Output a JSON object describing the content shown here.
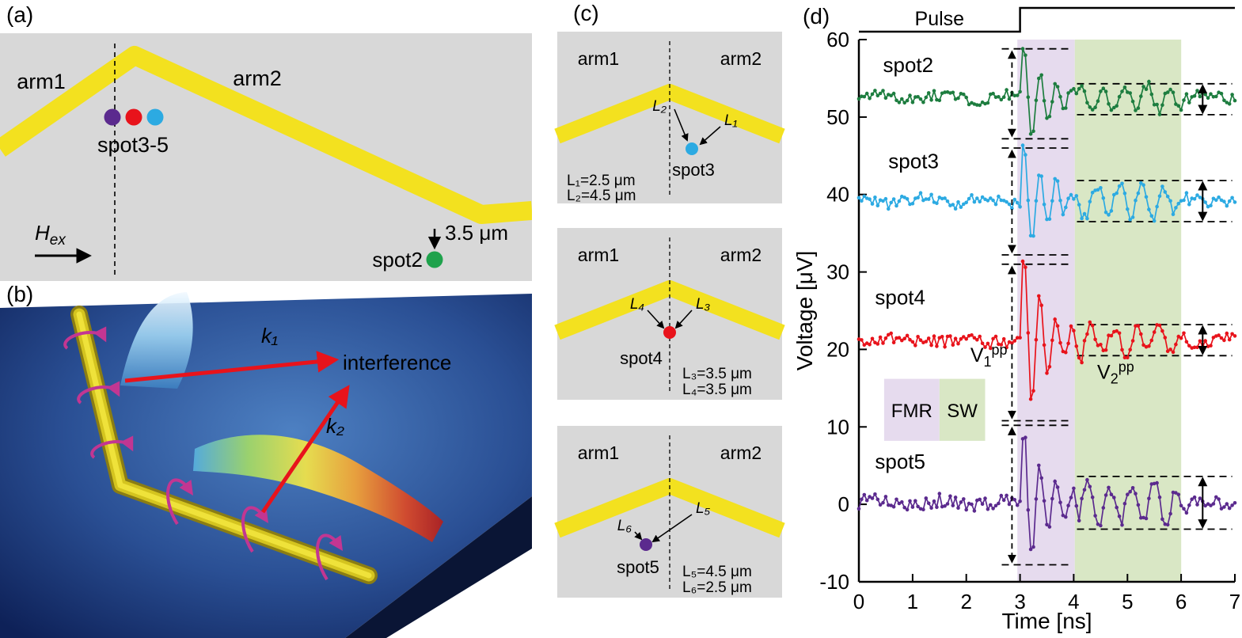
{
  "figure": {
    "panel_a": {
      "label": "(a)",
      "arm1": "arm1",
      "arm2": "arm2",
      "spots_label": "spot3-5",
      "field_main": "H",
      "field_sub": "ex",
      "spot2_label": "spot2",
      "distance_label": "3.5 μm",
      "colors": {
        "stripe": "#f3e11f",
        "background": "#d8d8d8",
        "spot2": "#1fa24c",
        "spot3": "#2caae2",
        "spot4": "#e8131b",
        "spot5": "#5b2a8e"
      }
    },
    "panel_b": {
      "label": "(b)",
      "k1_label": "k₁",
      "k2_label": "k₂",
      "interference_label": "interference"
    },
    "panel_c": {
      "label": "(c)",
      "boxes": [
        {
          "arm1": "arm1",
          "arm2": "arm2",
          "spot_label": "spot3",
          "spot_color": "#2caae2",
          "left_label": "L₂",
          "right_label": "L₁",
          "dims": [
            "L₁=2.5 μm",
            "L₂=4.5 μm"
          ]
        },
        {
          "arm1": "arm1",
          "arm2": "arm2",
          "spot_label": "spot4",
          "spot_color": "#e8131b",
          "left_label": "L₄",
          "right_label": "L₃",
          "dims": [
            "L₃=3.5 μm",
            "L₄=3.5 μm"
          ]
        },
        {
          "arm1": "arm1",
          "arm2": "arm2",
          "spot_label": "spot5",
          "spot_color": "#5b2a8e",
          "left_label": "L₆",
          "right_label": "L₅",
          "dims": [
            "L₅=4.5 μm",
            "L₆=2.5 μm"
          ]
        }
      ]
    },
    "panel_d": {
      "label": "(d)"
    }
  },
  "chart_data": {
    "type": "line",
    "title": "",
    "xlabel": "Time [ns]",
    "ylabel": "Voltage [μV]",
    "xlim": [
      0,
      7
    ],
    "ylim": [
      -10,
      60
    ],
    "xticks": [
      0,
      1,
      2,
      3,
      4,
      5,
      6,
      7
    ],
    "yticks": [
      60,
      50,
      40,
      30,
      20,
      10,
      0,
      -10
    ],
    "grid": false,
    "pulse": {
      "label": "Pulse",
      "rise_time_ns": 3.0
    },
    "regions": [
      {
        "name": "FMR",
        "label": "FMR",
        "from": 2.95,
        "to": 4.02,
        "color": "#e6dbee"
      },
      {
        "name": "SW",
        "label": "SW",
        "from": 4.02,
        "to": 6.0,
        "color": "#d9e7c5"
      }
    ],
    "annotations": {
      "v1pp": {
        "base": "V",
        "sub": "1",
        "sup": "pp",
        "t": 2.42,
        "v": 18.4
      },
      "v2pp": {
        "base": "V",
        "sub": "2",
        "sup": "pp",
        "t": 4.78,
        "v": 16.2
      },
      "fmr_arrow_t": 2.85,
      "sw_arrow_t": 6.4,
      "fmr_dash_from": 2.66,
      "fmr_dash_to": 3.93,
      "sw_dash_from": 4.06,
      "sw_dash_to": 6.95
    },
    "burst": {
      "t0": 3.0,
      "period_ns": 0.3,
      "decay_ns": 0.45
    },
    "sw_osc": {
      "t0": 4.0,
      "t1": 6.15,
      "period_ns": 0.42
    },
    "legend_boxes": {
      "t0": 0.47,
      "t1": 1.5,
      "t2": 2.35,
      "v_top": 16.2,
      "v_bottom": 8.2
    },
    "series": [
      {
        "name": "spot2",
        "color": "#1d7d3f",
        "baseline": 52.5,
        "noise": 0.8,
        "fmr_peak": 58.8,
        "fmr_trough": 47.2,
        "sw_high": 54.3,
        "sw_low": 50.3,
        "label_t": 0.45,
        "label_v": 55.8
      },
      {
        "name": "spot3",
        "color": "#2caae2",
        "baseline": 39.2,
        "noise": 0.85,
        "fmr_peak": 46.0,
        "fmr_trough": 32.2,
        "sw_high": 41.8,
        "sw_low": 36.5,
        "label_t": 0.55,
        "label_v": 43.4
      },
      {
        "name": "spot4",
        "color": "#e8131b",
        "baseline": 21.2,
        "noise": 0.9,
        "fmr_peak": 31.0,
        "fmr_trough": 10.8,
        "sw_high": 23.2,
        "sw_low": 19.2,
        "label_t": 0.3,
        "label_v": 25.8
      },
      {
        "name": "spot5",
        "color": "#5b2a8e",
        "baseline": 0.2,
        "noise": 1.0,
        "fmr_peak": 10.2,
        "fmr_trough": -7.8,
        "sw_high": 3.6,
        "sw_low": -3.2,
        "label_t": 0.3,
        "label_v": 4.6
      }
    ]
  }
}
